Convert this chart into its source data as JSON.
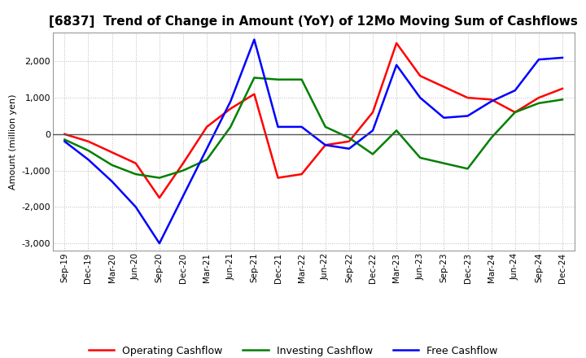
{
  "title": "[6837]  Trend of Change in Amount (YoY) of 12Mo Moving Sum of Cashflows",
  "ylabel": "Amount (million yen)",
  "labels": [
    "Sep-19",
    "Dec-19",
    "Mar-20",
    "Jun-20",
    "Sep-20",
    "Dec-20",
    "Mar-21",
    "Jun-21",
    "Sep-21",
    "Dec-21",
    "Mar-22",
    "Jun-22",
    "Sep-22",
    "Dec-22",
    "Mar-23",
    "Jun-23",
    "Sep-23",
    "Dec-23",
    "Mar-24",
    "Jun-24",
    "Sep-24",
    "Dec-24"
  ],
  "operating": [
    0,
    -200,
    -500,
    -800,
    -1750,
    -800,
    200,
    700,
    1100,
    -1200,
    -1100,
    -300,
    -200,
    600,
    2500,
    1600,
    1300,
    1000,
    950,
    600,
    1000,
    1250
  ],
  "investing": [
    -150,
    -450,
    -850,
    -1100,
    -1200,
    -1000,
    -700,
    200,
    1550,
    1500,
    1500,
    200,
    -100,
    -550,
    100,
    -650,
    -800,
    -950,
    -100,
    600,
    850,
    950
  ],
  "free": [
    -200,
    -700,
    -1300,
    -2000,
    -3000,
    -1700,
    -400,
    900,
    2600,
    200,
    200,
    -300,
    -400,
    100,
    1900,
    1000,
    450,
    500,
    900,
    1200,
    2050,
    2100
  ],
  "ylim": [
    -3200,
    2800
  ],
  "yticks": [
    -3000,
    -2000,
    -1000,
    0,
    1000,
    2000
  ],
  "operating_color": "#ff0000",
  "investing_color": "#008000",
  "free_color": "#0000ff",
  "background_color": "#ffffff",
  "grid_color": "#bbbbbb",
  "title_fontsize": 11,
  "ylabel_fontsize": 8,
  "tick_fontsize": 8,
  "xtick_fontsize": 7.5,
  "legend_fontsize": 9,
  "linewidth": 1.8
}
